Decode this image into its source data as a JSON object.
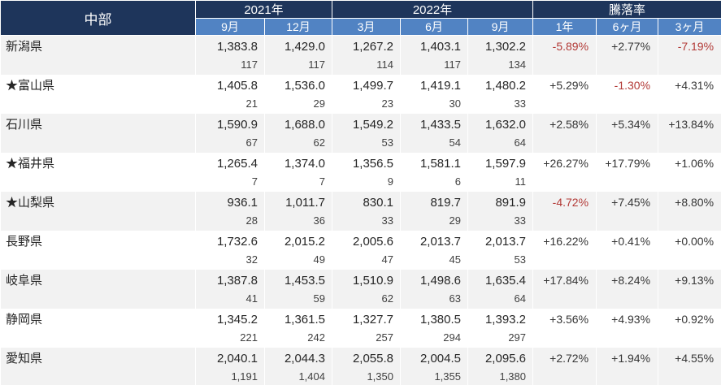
{
  "chart_data": {
    "type": "table",
    "region_label": "中部",
    "year_groups": [
      {
        "label": "2021年",
        "months": [
          "9月",
          "12月"
        ]
      },
      {
        "label": "2022年",
        "months": [
          "3月",
          "6月",
          "9月"
        ]
      }
    ],
    "change_group": {
      "label": "騰落率",
      "periods": [
        "1年",
        "6ヶ月",
        "3ヶ月"
      ]
    },
    "rows": [
      {
        "name": "新潟県",
        "prices": [
          1383.8,
          1429.0,
          1267.2,
          1403.1,
          1302.2
        ],
        "counts": [
          117,
          117,
          114,
          117,
          134
        ],
        "changes_pct": [
          -5.89,
          2.77,
          -7.19
        ]
      },
      {
        "name": "★富山県",
        "prices": [
          1405.8,
          1536.0,
          1499.7,
          1419.1,
          1480.2
        ],
        "counts": [
          21,
          29,
          23,
          30,
          33
        ],
        "changes_pct": [
          5.29,
          -1.3,
          4.31
        ]
      },
      {
        "name": "石川県",
        "prices": [
          1590.9,
          1688.0,
          1549.2,
          1433.5,
          1632.0
        ],
        "counts": [
          67,
          62,
          53,
          54,
          64
        ],
        "changes_pct": [
          2.58,
          5.34,
          13.84
        ]
      },
      {
        "name": "★福井県",
        "prices": [
          1265.4,
          1374.0,
          1356.5,
          1581.1,
          1597.9
        ],
        "counts": [
          7,
          7,
          9,
          6,
          11
        ],
        "changes_pct": [
          26.27,
          17.79,
          1.06
        ]
      },
      {
        "name": "★山梨県",
        "prices": [
          936.1,
          1011.7,
          830.1,
          819.7,
          891.9
        ],
        "counts": [
          28,
          36,
          33,
          29,
          33
        ],
        "changes_pct": [
          -4.72,
          7.45,
          8.8
        ]
      },
      {
        "name": "長野県",
        "prices": [
          1732.6,
          2015.2,
          2005.6,
          2013.7,
          2013.7
        ],
        "counts": [
          32,
          49,
          47,
          45,
          53
        ],
        "changes_pct": [
          16.22,
          0.41,
          0.0
        ]
      },
      {
        "name": "岐阜県",
        "prices": [
          1387.8,
          1453.5,
          1510.9,
          1498.6,
          1635.4
        ],
        "counts": [
          41,
          59,
          62,
          63,
          64
        ],
        "changes_pct": [
          17.84,
          8.24,
          9.13
        ]
      },
      {
        "name": "静岡県",
        "prices": [
          1345.2,
          1361.5,
          1327.7,
          1380.5,
          1393.2
        ],
        "counts": [
          221,
          242,
          257,
          294,
          297
        ],
        "changes_pct": [
          3.56,
          4.93,
          0.92
        ]
      },
      {
        "name": "愛知県",
        "prices": [
          2040.1,
          2044.3,
          2055.8,
          2004.5,
          2095.6
        ],
        "counts": [
          1191,
          1404,
          1350,
          1355,
          1380
        ],
        "changes_pct": [
          2.72,
          1.94,
          4.55
        ]
      }
    ]
  },
  "colors": {
    "header_navy": "#1e355b",
    "header_blue": "#5183c3",
    "row_alt_gray": "#f2f2f2",
    "negative_red": "#b23936",
    "text": "#262626"
  }
}
